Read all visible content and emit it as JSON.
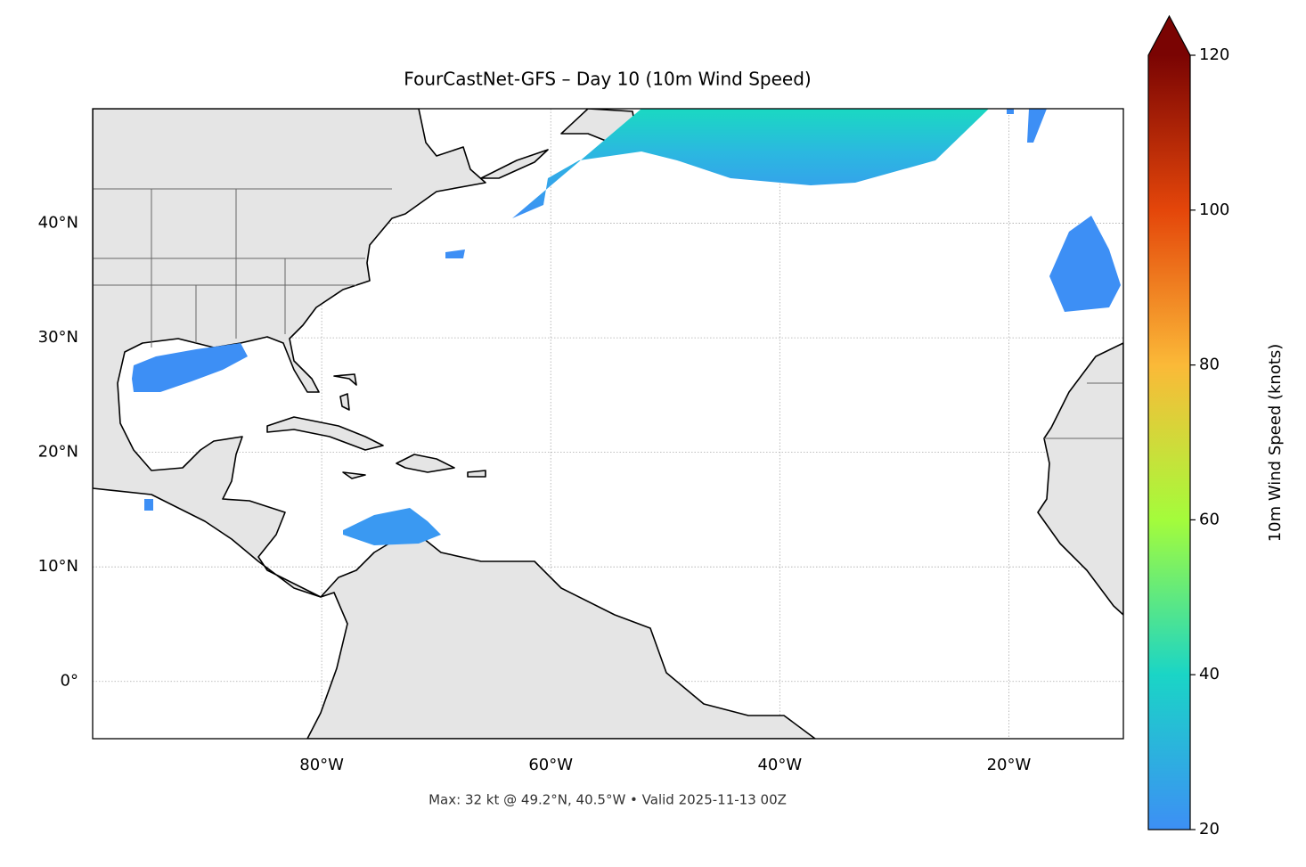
{
  "chart_data": {
    "type": "map",
    "title": "FourCastNet-GFS – Day 10 (10m Wind Speed)",
    "footer": "Max: 32 kt @ 49.2°N, 40.5°W • Valid 2025-11-13 00Z",
    "xlim": [
      -100,
      -10
    ],
    "ylim": [
      -5,
      50
    ],
    "xticks": [
      {
        "value": -80,
        "label": "80°W"
      },
      {
        "value": -60,
        "label": "60°W"
      },
      {
        "value": -40,
        "label": "40°W"
      },
      {
        "value": -20,
        "label": "20°W"
      }
    ],
    "yticks": [
      {
        "value": 0,
        "label": "0°"
      },
      {
        "value": 10,
        "label": "10°N"
      },
      {
        "value": 20,
        "label": "20°N"
      },
      {
        "value": 30,
        "label": "30°N"
      },
      {
        "value": 40,
        "label": "40°N"
      }
    ],
    "grid": true,
    "colorbar": {
      "label": "10m Wind Speed (knots)",
      "lim": [
        20,
        120
      ],
      "ticks": [
        20,
        40,
        60,
        80,
        100,
        120
      ],
      "extend": "max",
      "colors": [
        "#3d8ff5",
        "#1ad5c6",
        "#a4fc3b",
        "#fbb938",
        "#e4460a",
        "#7a0403"
      ]
    }
  }
}
